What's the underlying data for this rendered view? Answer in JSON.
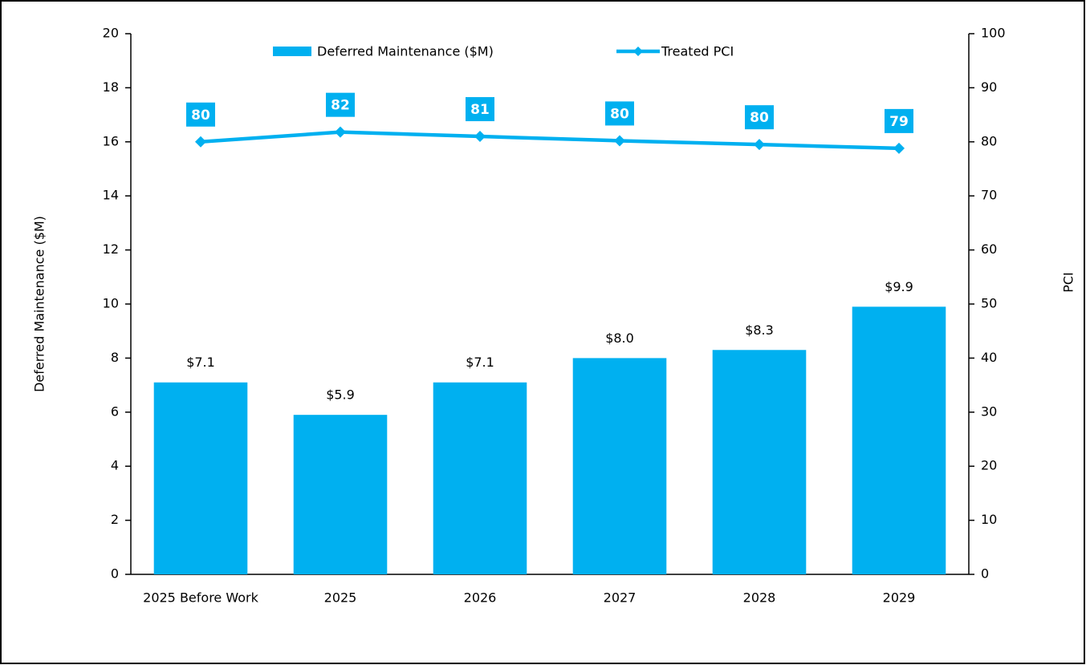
{
  "chart_data": {
    "type": "bar_line",
    "categories": [
      "2025 Before Work",
      "2025",
      "2026",
      "2027",
      "2028",
      "2029"
    ],
    "series": [
      {
        "name": "Deferred Maintenance ($M)",
        "type": "bar",
        "color": "#00b0f0",
        "axis": "y",
        "values": [
          7.1,
          5.9,
          7.1,
          8.0,
          8.3,
          9.9
        ],
        "value_labels": [
          "$7.1",
          "$5.9",
          "$7.1",
          "$8.0",
          "$8.3",
          "$9.9"
        ]
      },
      {
        "name": "Treated PCI",
        "type": "line",
        "color": "#00b0f0",
        "axis": "y2",
        "values": [
          80,
          81.8,
          81,
          80.2,
          79.5,
          78.8
        ],
        "value_labels": [
          "80",
          "82",
          "81",
          "80",
          "80",
          "79"
        ]
      }
    ],
    "ylabel": "Deferred Maintenance ($M)",
    "y2label": "PCI",
    "ylim": [
      0,
      20
    ],
    "yticks": [
      0,
      2,
      4,
      6,
      8,
      10,
      12,
      14,
      16,
      18,
      20
    ],
    "y2lim": [
      0,
      100
    ],
    "y2ticks": [
      0,
      10,
      20,
      30,
      40,
      50,
      60,
      70,
      80,
      90,
      100
    ],
    "legend": "top",
    "grid": false
  }
}
